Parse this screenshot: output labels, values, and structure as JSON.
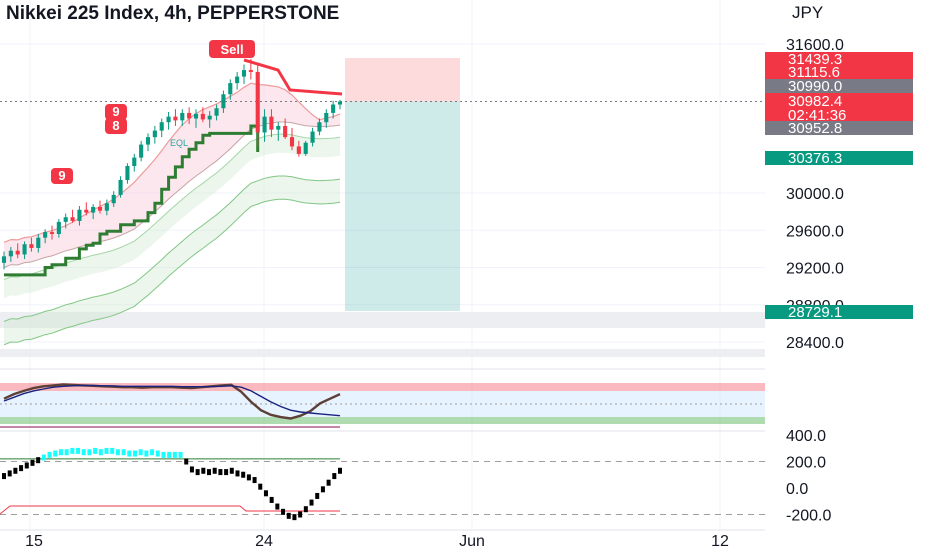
{
  "header": {
    "title": "Nikkei 225 Index, 4h, PEPPERSTONE"
  },
  "chart_data": [
    {
      "type": "candlestick",
      "title": "Nikkei 225 Index, 4h, PEPPERSTONE",
      "currency": "JPY",
      "ylim": [
        28200,
        31800
      ],
      "y_ticks": [
        {
          "value": 31600,
          "label": "31600.0"
        },
        {
          "value": 30000,
          "label": "30000.0"
        },
        {
          "value": 29600,
          "label": "29600.0"
        },
        {
          "value": 29200,
          "label": "29200.0"
        },
        {
          "value": 28800,
          "label": "28800.0"
        },
        {
          "value": 28400,
          "label": "28400.0"
        }
      ],
      "price_labels": [
        {
          "value": 31439.3,
          "label": "31439.3",
          "color": "#f23645"
        },
        {
          "value": 31115.6,
          "label": "31115.6",
          "color": "#f23645"
        },
        {
          "value": 30990.0,
          "label": "30990.0",
          "color": "#787b86"
        },
        {
          "value": 30982.4,
          "label": "30982.4",
          "color": "#f23645",
          "countdown": "02:41:36"
        },
        {
          "value": 30952.8,
          "label": "30952.8",
          "color": "#787b86"
        },
        {
          "value": 30376.3,
          "label": "30376.3",
          "color": "#089981"
        },
        {
          "value": 28729.1,
          "label": "28729.1",
          "color": "#089981"
        }
      ],
      "x_ticks": [
        "15",
        "24",
        "Jun",
        "12"
      ],
      "candles": [
        {
          "o": 29250,
          "h": 29370,
          "l": 29180,
          "c": 29320
        },
        {
          "o": 29320,
          "h": 29420,
          "l": 29260,
          "c": 29380
        },
        {
          "o": 29380,
          "h": 29460,
          "l": 29300,
          "c": 29340
        },
        {
          "o": 29340,
          "h": 29480,
          "l": 29290,
          "c": 29450
        },
        {
          "o": 29450,
          "h": 29520,
          "l": 29370,
          "c": 29410
        },
        {
          "o": 29410,
          "h": 29560,
          "l": 29360,
          "c": 29520
        },
        {
          "o": 29520,
          "h": 29610,
          "l": 29460,
          "c": 29580
        },
        {
          "o": 29580,
          "h": 29650,
          "l": 29500,
          "c": 29560
        },
        {
          "o": 29560,
          "h": 29720,
          "l": 29520,
          "c": 29690
        },
        {
          "o": 29690,
          "h": 29780,
          "l": 29620,
          "c": 29740
        },
        {
          "o": 29740,
          "h": 29820,
          "l": 29680,
          "c": 29700
        },
        {
          "o": 29700,
          "h": 29860,
          "l": 29650,
          "c": 29820
        },
        {
          "o": 29820,
          "h": 29900,
          "l": 29760,
          "c": 29790
        },
        {
          "o": 29790,
          "h": 29880,
          "l": 29720,
          "c": 29850
        },
        {
          "o": 29850,
          "h": 29920,
          "l": 29780,
          "c": 29810
        },
        {
          "o": 29810,
          "h": 29930,
          "l": 29760,
          "c": 29890
        },
        {
          "o": 29890,
          "h": 30020,
          "l": 29850,
          "c": 29980
        },
        {
          "o": 29980,
          "h": 30180,
          "l": 29950,
          "c": 30140
        },
        {
          "o": 30140,
          "h": 30320,
          "l": 30100,
          "c": 30290
        },
        {
          "o": 30290,
          "h": 30420,
          "l": 30230,
          "c": 30380
        },
        {
          "o": 30380,
          "h": 30560,
          "l": 30340,
          "c": 30520
        },
        {
          "o": 30520,
          "h": 30640,
          "l": 30450,
          "c": 30600
        },
        {
          "o": 30600,
          "h": 30720,
          "l": 30530,
          "c": 30670
        },
        {
          "o": 30670,
          "h": 30800,
          "l": 30600,
          "c": 30760
        },
        {
          "o": 30760,
          "h": 30870,
          "l": 30680,
          "c": 30820
        },
        {
          "o": 30820,
          "h": 30900,
          "l": 30720,
          "c": 30780
        },
        {
          "o": 30780,
          "h": 30900,
          "l": 30720,
          "c": 30860
        },
        {
          "o": 30860,
          "h": 30920,
          "l": 30740,
          "c": 30800
        },
        {
          "o": 30800,
          "h": 30900,
          "l": 30700,
          "c": 30850
        },
        {
          "o": 30850,
          "h": 30920,
          "l": 30760,
          "c": 30790
        },
        {
          "o": 30790,
          "h": 30880,
          "l": 30700,
          "c": 30830
        },
        {
          "o": 30830,
          "h": 30950,
          "l": 30780,
          "c": 30910
        },
        {
          "o": 30910,
          "h": 31100,
          "l": 30860,
          "c": 31060
        },
        {
          "o": 31060,
          "h": 31220,
          "l": 31000,
          "c": 31180
        },
        {
          "o": 31180,
          "h": 31300,
          "l": 31110,
          "c": 31250
        },
        {
          "o": 31250,
          "h": 31380,
          "l": 31170,
          "c": 31320
        },
        {
          "o": 31320,
          "h": 31440,
          "l": 31220,
          "c": 31300
        },
        {
          "o": 31300,
          "h": 31400,
          "l": 30500,
          "c": 30650
        },
        {
          "o": 30650,
          "h": 30900,
          "l": 30550,
          "c": 30820
        },
        {
          "o": 30820,
          "h": 30900,
          "l": 30600,
          "c": 30680
        },
        {
          "o": 30680,
          "h": 30760,
          "l": 30560,
          "c": 30720
        },
        {
          "o": 30720,
          "h": 30800,
          "l": 30580,
          "c": 30600
        },
        {
          "o": 30600,
          "h": 30700,
          "l": 30460,
          "c": 30500
        },
        {
          "o": 30500,
          "h": 30560,
          "l": 30390,
          "c": 30420
        },
        {
          "o": 30420,
          "h": 30560,
          "l": 30400,
          "c": 30540
        },
        {
          "o": 30540,
          "h": 30700,
          "l": 30500,
          "c": 30660
        },
        {
          "o": 30660,
          "h": 30800,
          "l": 30620,
          "c": 30760
        },
        {
          "o": 30760,
          "h": 30900,
          "l": 30700,
          "c": 30860
        },
        {
          "o": 30860,
          "h": 30990,
          "l": 30800,
          "c": 30950
        },
        {
          "o": 30950,
          "h": 31000,
          "l": 30900,
          "c": 30982
        }
      ],
      "signals": [
        {
          "label": "Sell",
          "color": "#f23645"
        },
        {
          "label": "9",
          "color": "#f23645"
        },
        {
          "label": "8",
          "color": "#f23645"
        },
        {
          "label": "9",
          "color": "#f23645"
        },
        {
          "label": "EQL",
          "color": "#26a69a"
        }
      ],
      "trade_box": {
        "entry": 30982.4,
        "stop": 31439.3,
        "target": 28729.1
      }
    },
    {
      "type": "line",
      "name": "oscillator",
      "ylim": [
        0,
        100
      ],
      "series": [
        {
          "values": [
            55,
            65,
            72,
            78,
            82,
            84,
            86,
            85,
            84,
            83,
            82,
            81,
            80,
            80,
            79,
            80,
            80,
            80,
            79,
            78,
            80,
            82,
            84,
            85,
            70,
            48,
            30,
            20,
            15,
            12,
            18,
            28,
            45,
            55,
            65
          ]
        },
        {
          "values": [
            50,
            58,
            66,
            72,
            76,
            80,
            82,
            83,
            84,
            84,
            83,
            83,
            82,
            82,
            82,
            82,
            82,
            82,
            81,
            81,
            81,
            81,
            82,
            83,
            80,
            72,
            60,
            48,
            38,
            30,
            26,
            24,
            22,
            20,
            18
          ]
        }
      ]
    },
    {
      "type": "bar",
      "name": "momentum",
      "y_ticks": [
        {
          "value": 400,
          "label": "400.0"
        },
        {
          "value": 200,
          "label": "200.0"
        },
        {
          "value": 0,
          "label": "0.0"
        },
        {
          "value": -200,
          "label": "-200.0"
        }
      ],
      "ylim": [
        -240,
        440
      ],
      "values": [
        90,
        110,
        130,
        150,
        170,
        190,
        210,
        230,
        250,
        260,
        270,
        270,
        280,
        280,
        270,
        270,
        280,
        270,
        280,
        280,
        270,
        270,
        260,
        260,
        270,
        260,
        270,
        260,
        250,
        250,
        250,
        250,
        200,
        140,
        120,
        130,
        120,
        130,
        120,
        120,
        130,
        110,
        100,
        80,
        60,
        10,
        -40,
        -90,
        -140,
        -180,
        -210,
        -220,
        -200,
        -160,
        -110,
        -60,
        -10,
        40,
        90,
        130
      ],
      "upper_line": 220,
      "lower_line": -140
    }
  ]
}
